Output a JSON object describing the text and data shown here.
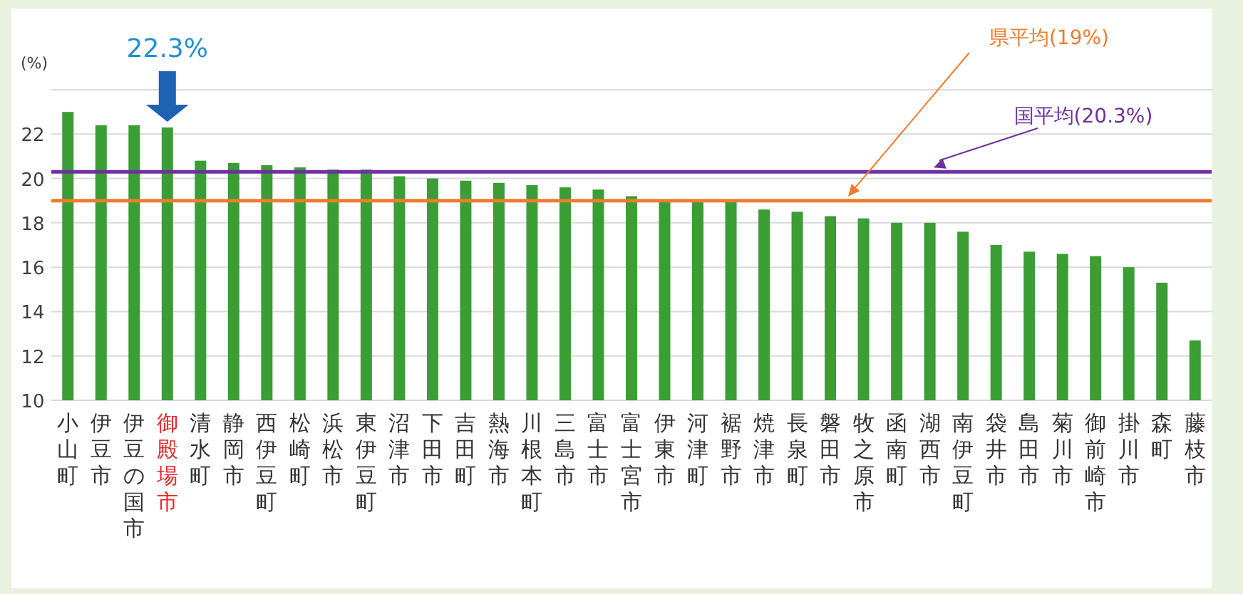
{
  "chart_data": {
    "type": "bar",
    "ylabel": "(%)",
    "categories": [
      "小山町",
      "伊豆市",
      "伊豆の国市",
      "御殿場市",
      "清水町",
      "静岡市",
      "西伊豆町",
      "松崎町",
      "浜松市",
      "東伊豆町",
      "沼津市",
      "下田市",
      "吉田町",
      "熱海市",
      "川根本町",
      "三島市",
      "富士市",
      "富士宮市",
      "伊東市",
      "河津町",
      "裾野市",
      "焼津市",
      "長泉町",
      "磐田市",
      "牧之原市",
      "函南町",
      "湖西市",
      "南伊豆町",
      "袋井市",
      "島田市",
      "菊川市",
      "御前崎市",
      "掛川市",
      "森町",
      "藤枝市"
    ],
    "values": [
      23.0,
      22.4,
      22.4,
      22.3,
      20.8,
      20.7,
      20.6,
      20.5,
      20.4,
      20.4,
      20.1,
      20.0,
      19.9,
      19.8,
      19.7,
      19.6,
      19.5,
      19.2,
      19.0,
      19.0,
      19.0,
      18.6,
      18.5,
      18.3,
      18.2,
      18.0,
      18.0,
      17.6,
      17.0,
      16.7,
      16.6,
      16.5,
      16.0,
      15.3,
      12.7
    ],
    "color": "#3a9e35",
    "ylim": [
      10,
      24
    ],
    "yticks": [
      10,
      12,
      14,
      16,
      18,
      20,
      22,
      {
        "value": 24,
        "label": null
      }
    ],
    "grid": "y",
    "ref_lines": [
      {
        "axis": "y",
        "value": 20.3,
        "label": "国平均(20.3%)",
        "color": "#7030a0"
      },
      {
        "axis": "y",
        "value": 19,
        "label": "県平均(19%)",
        "color": "#f07b2e"
      }
    ],
    "annotations": [
      {
        "text": "22.3%",
        "x": "御殿場市",
        "y": 22.3
      }
    ]
  }
}
